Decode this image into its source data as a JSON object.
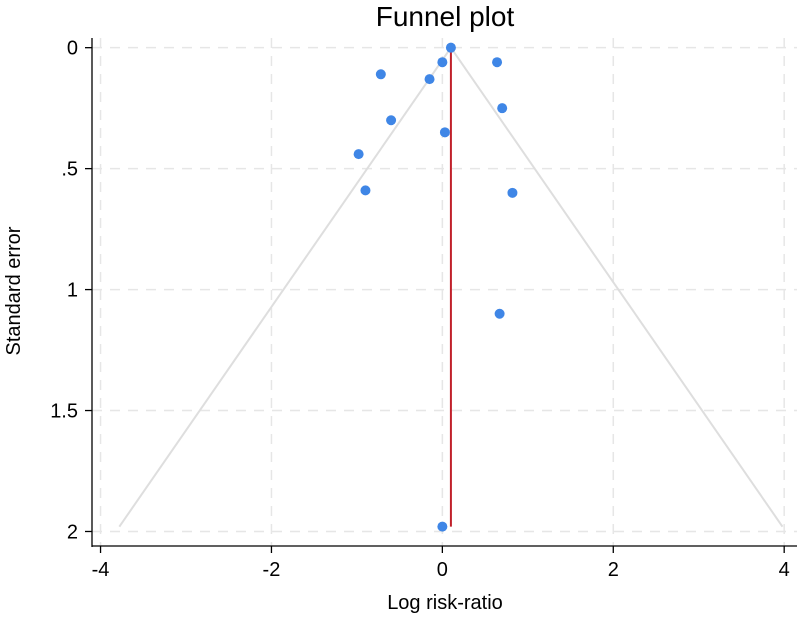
{
  "chart_data": {
    "type": "scatter",
    "title": "Funnel plot",
    "xlabel": "Log risk-ratio",
    "ylabel": "Standard error",
    "xlim": [
      -4.1,
      4.15
    ],
    "ylim": [
      2.06,
      -0.04
    ],
    "y_reversed": true,
    "grid": true,
    "x_ticks": [
      -4,
      -2,
      0,
      2,
      4
    ],
    "x_tick_labels": [
      "-4",
      "-2",
      "0",
      "2",
      "4"
    ],
    "y_ticks": [
      0,
      0.5,
      1,
      1.5,
      2
    ],
    "y_tick_labels": [
      "0",
      ".5",
      "1",
      "1.5",
      "2"
    ],
    "pooled_estimate": 0.1,
    "pseudo_ci_limits": {
      "apex": [
        0.1,
        0
      ],
      "left_base": [
        -3.78,
        1.98
      ],
      "right_base": [
        3.98,
        1.98
      ]
    },
    "points": [
      {
        "x": 0.1,
        "y": 0.0
      },
      {
        "x": 0.64,
        "y": 0.06
      },
      {
        "x": 0.0,
        "y": 0.06
      },
      {
        "x": -0.72,
        "y": 0.11
      },
      {
        "x": -0.15,
        "y": 0.13
      },
      {
        "x": 0.7,
        "y": 0.25
      },
      {
        "x": -0.6,
        "y": 0.3
      },
      {
        "x": 0.03,
        "y": 0.35
      },
      {
        "x": -0.98,
        "y": 0.44
      },
      {
        "x": -0.9,
        "y": 0.59
      },
      {
        "x": 0.82,
        "y": 0.6
      },
      {
        "x": 0.67,
        "y": 1.1
      },
      {
        "x": 0.0,
        "y": 1.98
      }
    ],
    "colors": {
      "points": "#3f86e6",
      "pooled_line": "#c0202a",
      "ci_lines": "#dedede",
      "grid": "#e6e6e6",
      "axis": "#000000"
    }
  }
}
